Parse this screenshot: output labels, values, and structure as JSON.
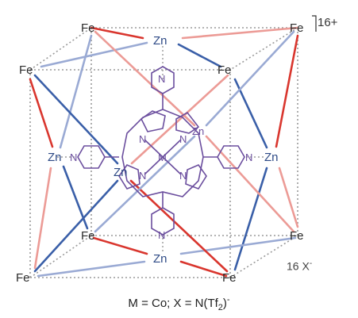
{
  "diagram": {
    "charge": "16+",
    "counterion": "16 X",
    "counterion_sup": "-",
    "caption": {
      "main": "M = Co; X = N(Tf",
      "sub": "2",
      "close": ")",
      "sup": "-"
    },
    "labels": {
      "fe": "Fe",
      "zn": "Zn",
      "n": "N",
      "m": "M"
    },
    "colors": {
      "red": "#d9362e",
      "blue": "#3a5fa8",
      "pale_red": "#ec9b96",
      "pale_blue": "#9aaad4",
      "porphyrin": "#6b4e9e",
      "cage_edge": "#9a9a9a"
    }
  }
}
